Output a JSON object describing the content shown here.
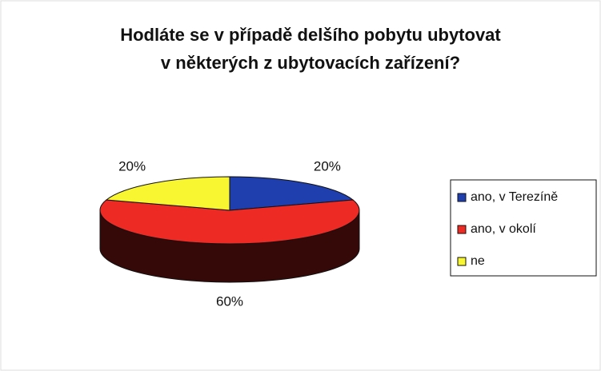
{
  "chart_data": {
    "type": "pie3d",
    "title": [
      "Hodláte se v případě delšího pobytu ubytovat",
      "v některých z ubytovacích zařízení?"
    ],
    "categories": [
      "ano, v Terezíně",
      "ano, v okolí",
      "ne"
    ],
    "values": [
      20,
      60,
      20
    ],
    "value_labels": [
      "20%",
      "60%",
      "20%"
    ],
    "colors": [
      "#1f3fae",
      "#ee2a24",
      "#f8f531"
    ],
    "legend": "right"
  }
}
